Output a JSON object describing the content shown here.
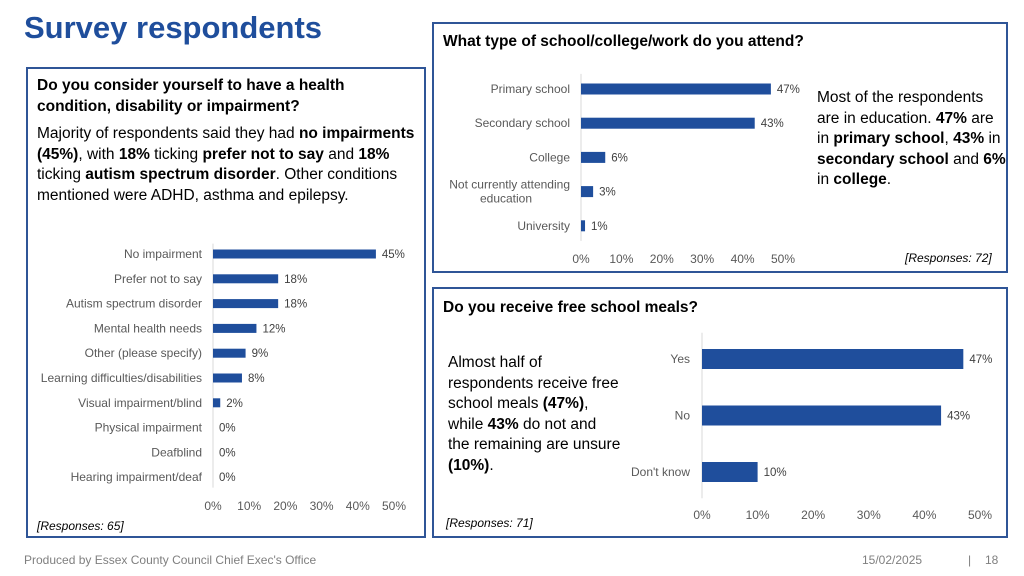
{
  "page_title": "Survey respondents",
  "accent_color": "#1f4e9c",
  "bar_color": "#1f4e9c",
  "disability": {
    "question": "Do you consider yourself to have a health condition, disability or impairment?",
    "summary": {
      "t1": "Majority of respondents said they had ",
      "b1": "no impairments (45%)",
      "t2": ", with ",
      "b2": "18%",
      "t3": " ticking ",
      "b3": "prefer not to say",
      "t4": " and ",
      "b4": "18%",
      "t5": " ticking ",
      "b5": "autism spectrum disorder",
      "t6": ". Other conditions mentioned were ADHD, asthma and epilepsy."
    },
    "responses": "[Responses: 65]"
  },
  "school": {
    "question": "What type of school/college/work do you attend?",
    "summary": {
      "t1": "Most of the respondents are in education. ",
      "b1": "47%",
      "t2": " are in ",
      "b2": "primary school",
      "t3": ", ",
      "b3": "43%",
      "t4": " in ",
      "b4": "secondary school",
      "t5": " and ",
      "b5": "6%",
      "t6": " in ",
      "b6": "college",
      "t7": "."
    },
    "responses": "[Responses: 72]"
  },
  "meals": {
    "question": "Do you receive free school meals?",
    "summary": {
      "t1": "Almost half of respondents receive free school meals ",
      "b1": "(47%)",
      "t2": ", while ",
      "b2": "43%",
      "t3": " do not and the remaining are unsure ",
      "b3": "(10%)",
      "t4": "."
    },
    "responses": "[Responses: 71]"
  },
  "footer": {
    "left": "Produced by Essex County Council Chief Exec's Office",
    "date": "15/02/2025",
    "sep": "|",
    "page": "18"
  },
  "chart_data": [
    {
      "id": "disability",
      "type": "bar",
      "orientation": "horizontal",
      "categories": [
        "No impairment",
        "Prefer not to say",
        "Autism spectrum disorder",
        "Mental health needs",
        "Other (please specify)",
        "Learning difficulties/disabilities",
        "Visual impairment/blind",
        "Physical impairment",
        "Deafblind",
        "Hearing impairment/deaf"
      ],
      "values": [
        45,
        18,
        18,
        12,
        9,
        8,
        2,
        0,
        0,
        0
      ],
      "value_labels": [
        "45%",
        "18%",
        "18%",
        "12%",
        "9%",
        "8%",
        "2%",
        "0%",
        "0%",
        "0%"
      ],
      "xlim": [
        0,
        50
      ],
      "xticks": [
        "0%",
        "10%",
        "20%",
        "30%",
        "40%",
        "50%"
      ],
      "grid": false
    },
    {
      "id": "school",
      "type": "bar",
      "orientation": "horizontal",
      "categories": [
        "Primary school",
        "Secondary school",
        "College",
        "Not currently attending education",
        "University"
      ],
      "values": [
        47,
        43,
        6,
        3,
        1
      ],
      "value_labels": [
        "47%",
        "43%",
        "6%",
        "3%",
        "1%"
      ],
      "xlim": [
        0,
        50
      ],
      "xticks": [
        "0%",
        "10%",
        "20%",
        "30%",
        "40%",
        "50%"
      ],
      "grid": false
    },
    {
      "id": "meals",
      "type": "bar",
      "orientation": "horizontal",
      "categories": [
        "Yes",
        "No",
        "Don't know"
      ],
      "values": [
        47,
        43,
        10
      ],
      "value_labels": [
        "47%",
        "43%",
        "10%"
      ],
      "xlim": [
        0,
        50
      ],
      "xticks": [
        "0%",
        "10%",
        "20%",
        "30%",
        "40%",
        "50%"
      ],
      "grid": false
    }
  ]
}
